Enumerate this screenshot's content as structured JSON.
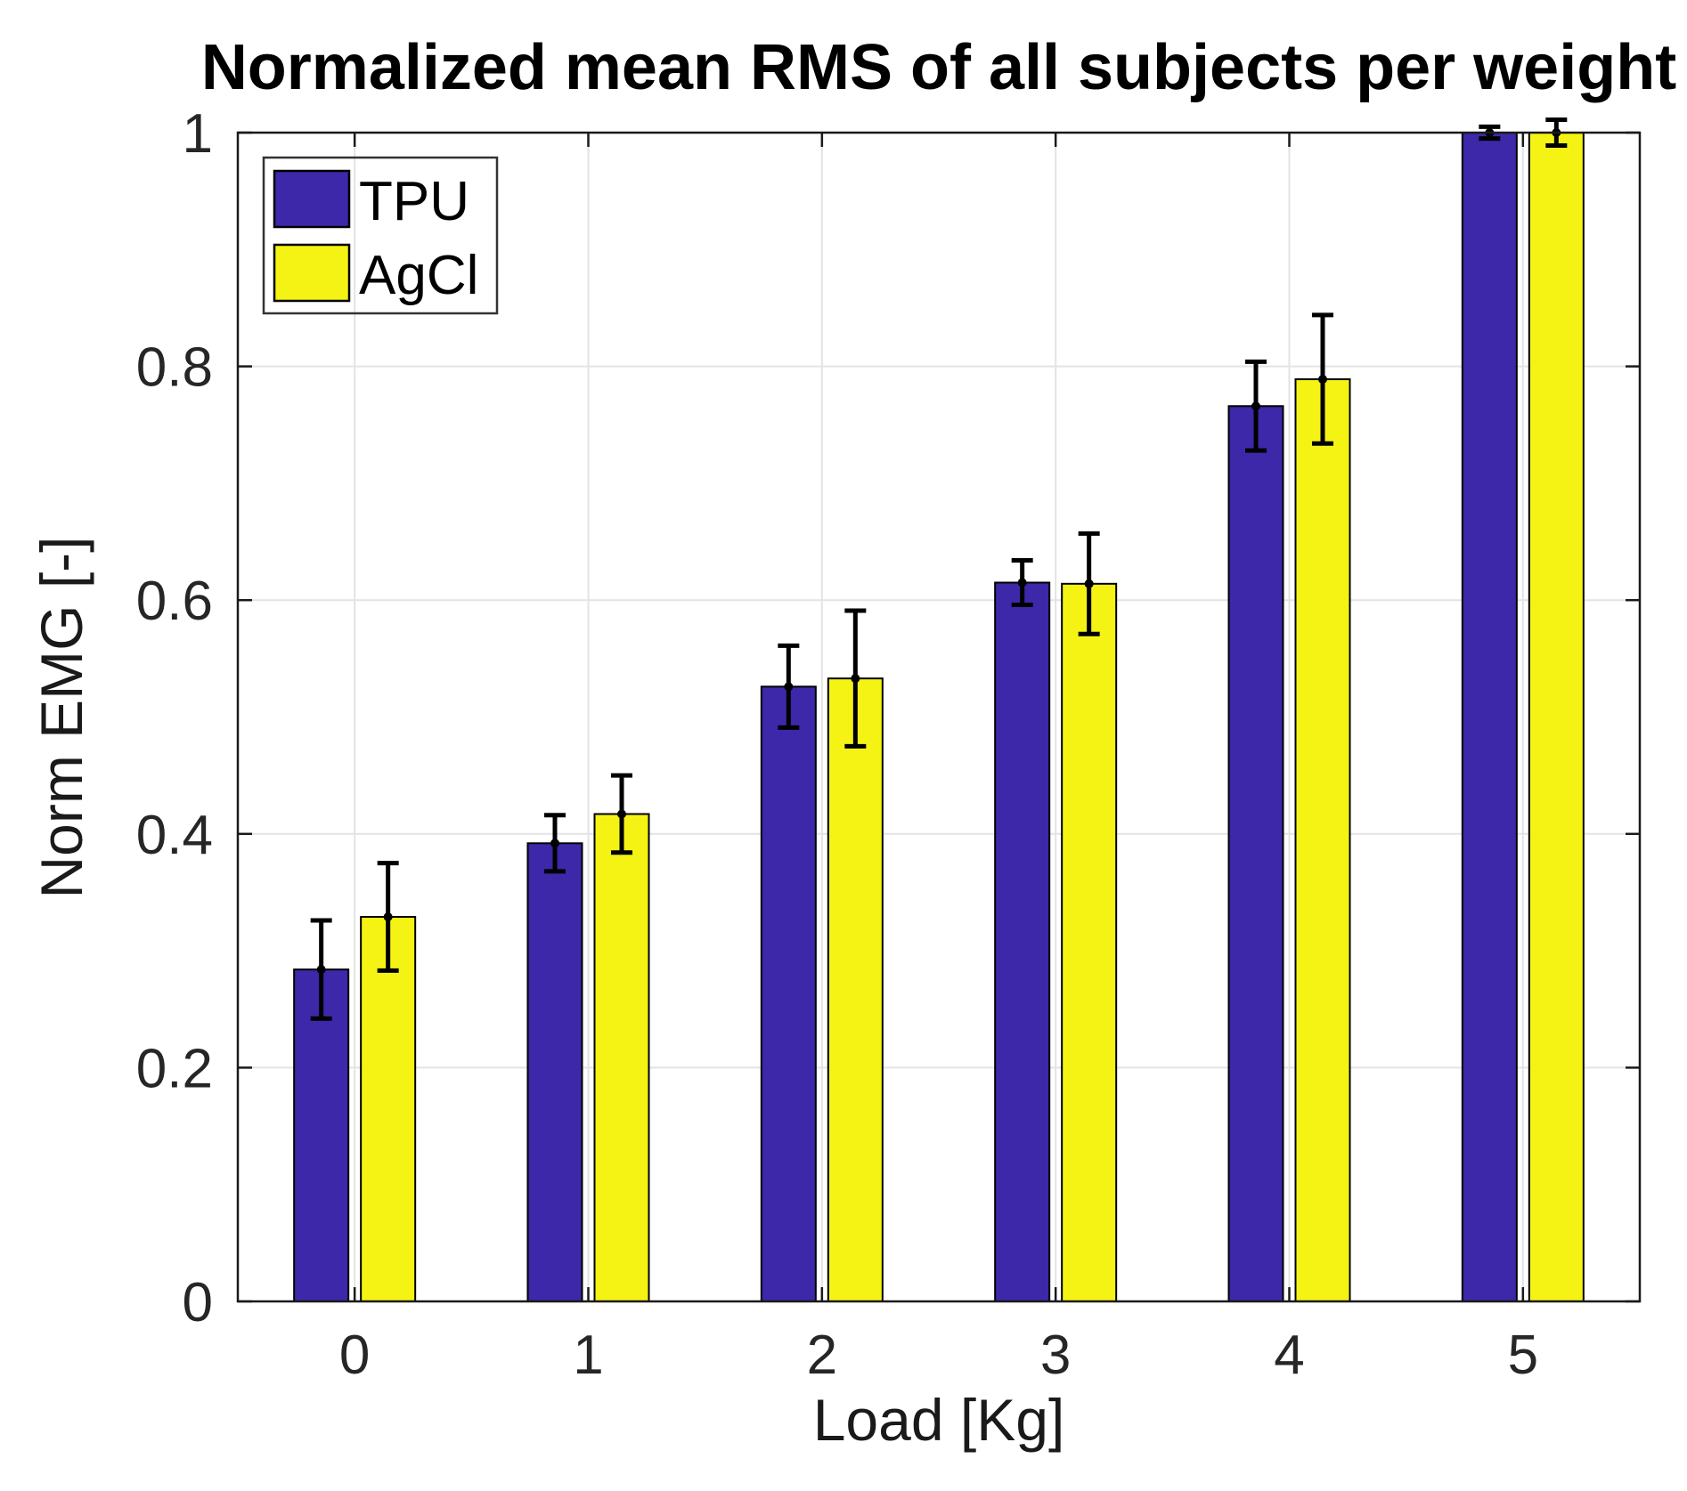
{
  "figure": {
    "background": "#ffffff"
  },
  "chart_data": {
    "type": "bar",
    "title": "Normalized mean RMS of all subjects per weight",
    "xlabel": "Load [Kg]",
    "ylabel": "Norm EMG [-]",
    "categories": [
      "0",
      "1",
      "2",
      "3",
      "4",
      "5"
    ],
    "series": [
      {
        "name": "TPU",
        "color": "#3c28a8",
        "values": [
          0.284,
          0.392,
          0.526,
          0.615,
          0.766,
          1.0
        ],
        "errors": [
          0.042,
          0.024,
          0.035,
          0.019,
          0.038,
          0.005
        ]
      },
      {
        "name": "AgCl",
        "color": "#f4f314",
        "values": [
          0.329,
          0.417,
          0.533,
          0.614,
          0.789,
          1.0
        ],
        "errors": [
          0.046,
          0.033,
          0.058,
          0.043,
          0.055,
          0.011
        ]
      }
    ],
    "ylim": [
      0,
      1
    ],
    "yticks": [
      0,
      0.2,
      0.4,
      0.6,
      0.8,
      1
    ],
    "ytick_labels": [
      "0",
      "0.2",
      "0.4",
      "0.6",
      "0.8",
      "1"
    ],
    "grid": true,
    "grid_axes": "both",
    "legend_position": "top-left",
    "error_bar_color": "#000000"
  },
  "style": {
    "axis_color": "#1a1a1a",
    "grid_color": "#e3e3e3",
    "bar_edge_color": "#000000",
    "legend_border_color": "#333333",
    "tick_text_color": "#262626"
  }
}
